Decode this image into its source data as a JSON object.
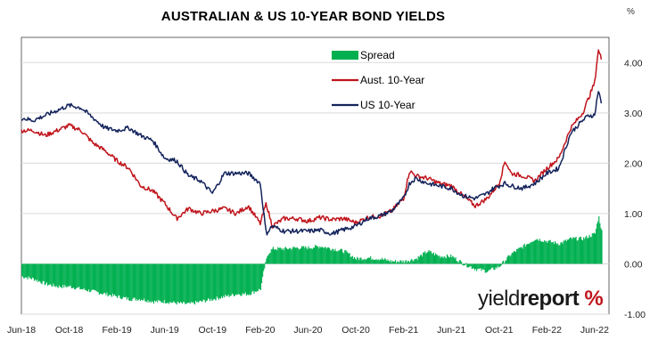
{
  "chart_data": {
    "type": "line",
    "title": "AUSTRALIAN & US 10-YEAR BOND YIELDS",
    "unit": "%",
    "ylim": [
      -1.0,
      4.5
    ],
    "y_ticks": [
      "4.00",
      "3.00",
      "2.00",
      "1.00",
      "0.00",
      "-1.00"
    ],
    "y_tick_values": [
      4,
      3,
      2,
      1,
      0,
      -1
    ],
    "x_ticks": [
      "Jun-18",
      "Oct-18",
      "Feb-19",
      "Jun-19",
      "Oct-19",
      "Feb-20",
      "Jun-20",
      "Oct-20",
      "Feb-21",
      "Jun-21",
      "Oct-21",
      "Feb-22",
      "Jun-22"
    ],
    "x_tick_values": [
      0,
      4,
      8,
      12,
      16,
      20,
      24,
      28,
      32,
      36,
      40,
      44,
      48
    ],
    "grid": "horizontal",
    "legend_position": "top-center",
    "series": [
      {
        "name": "Spread",
        "kind": "bar",
        "color": "#00b050",
        "x": [
          0,
          1,
          2,
          3,
          4,
          5,
          6,
          7,
          8,
          9,
          10,
          11,
          12,
          13,
          14,
          15,
          16,
          17,
          18,
          19,
          20,
          20.3,
          20.6,
          21,
          22,
          23,
          24,
          25,
          26,
          27,
          28,
          29,
          30,
          31,
          32,
          33,
          34,
          35,
          36,
          37,
          38,
          39,
          40,
          41,
          42,
          43,
          44,
          45,
          46,
          47,
          47.5,
          48,
          48.3,
          48.6
        ],
        "values": [
          -0.25,
          -0.3,
          -0.4,
          -0.45,
          -0.45,
          -0.5,
          -0.55,
          -0.6,
          -0.65,
          -0.7,
          -0.7,
          -0.75,
          -0.75,
          -0.78,
          -0.8,
          -0.75,
          -0.7,
          -0.65,
          -0.6,
          -0.6,
          -0.5,
          -0.1,
          0.2,
          0.3,
          0.3,
          0.32,
          0.32,
          0.35,
          0.3,
          0.25,
          0.1,
          0.12,
          0.1,
          0.05,
          0.05,
          0.1,
          0.25,
          0.15,
          0.15,
          0.0,
          -0.1,
          -0.15,
          -0.05,
          0.2,
          0.35,
          0.5,
          0.45,
          0.4,
          0.5,
          0.5,
          0.55,
          0.6,
          0.95,
          0.6
        ]
      },
      {
        "name": "Aust. 10-Year",
        "kind": "line",
        "color": "#c0141c",
        "x": [
          0,
          1,
          2,
          3,
          4,
          5,
          6,
          7,
          8,
          9,
          10,
          11,
          12,
          13,
          14,
          15,
          16,
          17,
          18,
          19,
          20,
          20.5,
          21,
          22,
          23,
          24,
          25,
          26,
          27,
          28,
          29,
          30,
          31,
          32,
          32.5,
          33,
          34,
          35,
          36,
          37,
          38,
          39,
          39.5,
          40,
          40.5,
          41,
          42,
          43,
          44,
          45,
          46,
          47,
          47.5,
          48,
          48.3,
          48.6
        ],
        "values": [
          2.65,
          2.65,
          2.55,
          2.65,
          2.75,
          2.65,
          2.4,
          2.25,
          2.05,
          1.9,
          1.55,
          1.45,
          1.2,
          0.9,
          1.1,
          1.0,
          1.05,
          1.1,
          1.0,
          1.15,
          0.8,
          1.2,
          0.75,
          0.9,
          0.9,
          0.85,
          0.92,
          0.88,
          0.9,
          0.82,
          0.92,
          0.95,
          1.05,
          1.3,
          1.85,
          1.75,
          1.7,
          1.6,
          1.55,
          1.35,
          1.15,
          1.3,
          1.45,
          1.6,
          2.05,
          1.8,
          1.75,
          1.65,
          1.9,
          2.1,
          2.7,
          3.0,
          3.3,
          3.6,
          4.25,
          4.05
        ]
      },
      {
        "name": "US 10-Year",
        "kind": "line",
        "color": "#13235b",
        "x": [
          0,
          1,
          2,
          3,
          4,
          5,
          6,
          7,
          8,
          9,
          10,
          11,
          12,
          13,
          14,
          15,
          16,
          17,
          18,
          19,
          20,
          20.5,
          21,
          22,
          23,
          24,
          25,
          26,
          27,
          28,
          29,
          30,
          31,
          32,
          32.5,
          33,
          34,
          35,
          36,
          37,
          38,
          39,
          39.5,
          40,
          40.5,
          41,
          42,
          43,
          44,
          45,
          46,
          47,
          47.5,
          48,
          48.3,
          48.6
        ],
        "values": [
          2.9,
          2.85,
          2.95,
          3.05,
          3.15,
          3.1,
          2.9,
          2.7,
          2.65,
          2.7,
          2.55,
          2.45,
          2.1,
          2.05,
          1.75,
          1.65,
          1.4,
          1.8,
          1.8,
          1.8,
          1.6,
          0.6,
          0.75,
          0.65,
          0.65,
          0.65,
          0.67,
          0.6,
          0.68,
          0.75,
          0.9,
          0.95,
          1.05,
          1.3,
          1.6,
          1.7,
          1.6,
          1.55,
          1.5,
          1.35,
          1.3,
          1.4,
          1.5,
          1.55,
          1.6,
          1.55,
          1.5,
          1.6,
          1.8,
          1.9,
          2.6,
          2.85,
          2.95,
          2.95,
          3.45,
          3.15
        ]
      }
    ]
  },
  "watermark": {
    "part1": "yield",
    "part2": "report",
    "part3": "%"
  }
}
